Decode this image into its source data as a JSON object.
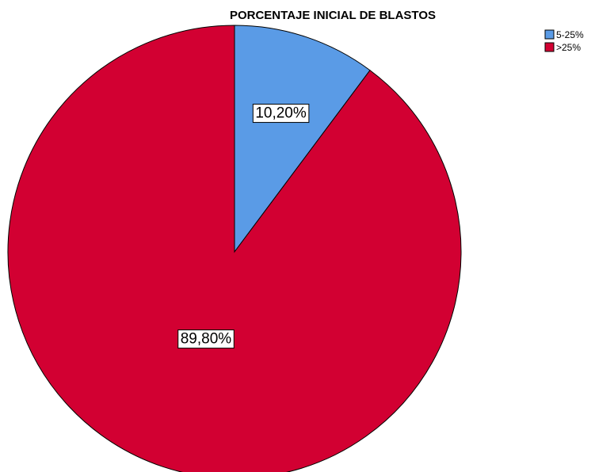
{
  "chart_data": {
    "type": "pie",
    "title": "PORCENTAJE INICIAL DE BLASTOS",
    "categories": [
      "5-25%",
      ">25%"
    ],
    "values": [
      10.2,
      89.8
    ],
    "data_labels": [
      "10,20%",
      "89,80%"
    ],
    "colors": [
      "#5a9be6",
      "#d20032"
    ],
    "start_angle": "12 o'clock",
    "direction": "clockwise",
    "legend_position": "top-right"
  }
}
